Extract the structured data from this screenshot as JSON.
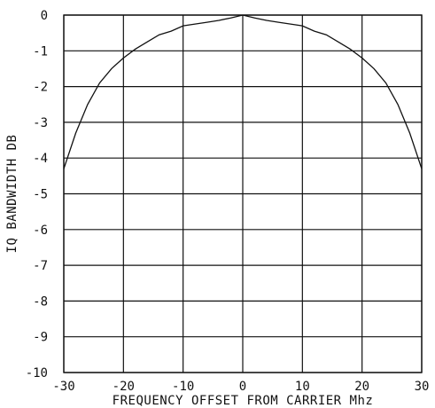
{
  "chart_data": {
    "type": "line",
    "title": "",
    "xlabel": "FREQUENCY OFFSET FROM CARRIER Mhz",
    "ylabel": "IQ BANDWIDTH DB",
    "xlim": [
      -30,
      30
    ],
    "ylim": [
      -10,
      0
    ],
    "x_ticks": [
      -30,
      -20,
      -10,
      0,
      10,
      20,
      30
    ],
    "x_tick_labels": [
      "-30",
      "-20",
      "-10",
      "0",
      "10",
      "20",
      "30"
    ],
    "y_ticks": [
      0,
      -1,
      -2,
      -3,
      -4,
      -5,
      -6,
      -7,
      -8,
      -9,
      -10
    ],
    "y_tick_labels": [
      "0",
      "-1",
      "-2",
      "-3",
      "-4",
      "-5",
      "-6",
      "-7",
      "-8",
      "-9",
      "-10"
    ],
    "grid": true,
    "legend": "none",
    "colors": {
      "line": "#111111",
      "grid": "#111111",
      "background": "#ffffff"
    },
    "series": [
      {
        "x": [
          -30,
          -28,
          -26,
          -24,
          -22,
          -20,
          -18,
          -16,
          -14,
          -12,
          -10,
          -8,
          -6,
          -4,
          -2,
          0,
          2,
          4,
          6,
          8,
          10,
          12,
          14,
          16,
          18,
          20,
          22,
          24,
          26,
          28,
          30
        ],
        "y": [
          -4.3,
          -3.3,
          -2.5,
          -1.9,
          -1.5,
          -1.2,
          -0.95,
          -0.75,
          -0.55,
          -0.45,
          -0.3,
          -0.25,
          -0.2,
          -0.15,
          -0.08,
          0.0,
          -0.08,
          -0.15,
          -0.2,
          -0.25,
          -0.3,
          -0.45,
          -0.55,
          -0.75,
          -0.95,
          -1.2,
          -1.5,
          -1.9,
          -2.5,
          -3.3,
          -4.3
        ]
      }
    ]
  }
}
